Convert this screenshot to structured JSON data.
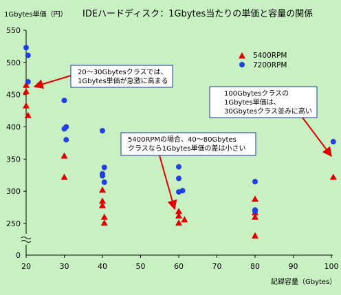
{
  "chart_data": {
    "type": "scatter",
    "title": "IDEハードディスク：1Gbytes当たりの単価と容量の関係",
    "ylabel": "1Gbytes単価（円）",
    "xlabel": "記録容量（Gbytes）",
    "xlim": [
      20,
      100
    ],
    "ylim": [
      200,
      550
    ],
    "xticks": [
      20,
      30,
      40,
      50,
      60,
      70,
      80,
      90,
      100
    ],
    "xtick_labels": [
      "20",
      "30",
      "40",
      "50",
      "60",
      "70",
      "80",
      "90",
      "100"
    ],
    "yticks": [
      250,
      300,
      350,
      400,
      450,
      500,
      550
    ],
    "ytick_labels": [
      "250",
      "300",
      "350",
      "400",
      "450",
      "500",
      "550"
    ],
    "ybreak_label": "0",
    "legend_position": "top-right",
    "grid": "none",
    "series": [
      {
        "name": "5400RPM",
        "marker": "triangle",
        "color": "#e00000",
        "points": [
          {
            "x": 20,
            "y": 465
          },
          {
            "x": 20,
            "y": 455
          },
          {
            "x": 20,
            "y": 433
          },
          {
            "x": 20.5,
            "y": 418
          },
          {
            "x": 30,
            "y": 355
          },
          {
            "x": 30,
            "y": 322
          },
          {
            "x": 40,
            "y": 302
          },
          {
            "x": 40,
            "y": 285
          },
          {
            "x": 40,
            "y": 278
          },
          {
            "x": 40.5,
            "y": 260
          },
          {
            "x": 40.5,
            "y": 251
          },
          {
            "x": 60,
            "y": 269
          },
          {
            "x": 60,
            "y": 262
          },
          {
            "x": 60,
            "y": 251
          },
          {
            "x": 61.5,
            "y": 256
          },
          {
            "x": 80,
            "y": 288
          },
          {
            "x": 80,
            "y": 267
          },
          {
            "x": 80,
            "y": 260
          },
          {
            "x": 80,
            "y": 231
          },
          {
            "x": 100.5,
            "y": 322
          }
        ]
      },
      {
        "name": "7200RPM",
        "marker": "circle",
        "color": "#2040e0",
        "points": [
          {
            "x": 20,
            "y": 523
          },
          {
            "x": 20.5,
            "y": 511
          },
          {
            "x": 20.5,
            "y": 470
          },
          {
            "x": 30,
            "y": 441
          },
          {
            "x": 30,
            "y": 397
          },
          {
            "x": 30.5,
            "y": 400
          },
          {
            "x": 30.5,
            "y": 380
          },
          {
            "x": 40,
            "y": 394
          },
          {
            "x": 40.5,
            "y": 337
          },
          {
            "x": 40,
            "y": 327
          },
          {
            "x": 40,
            "y": 324
          },
          {
            "x": 40.5,
            "y": 314
          },
          {
            "x": 60,
            "y": 338
          },
          {
            "x": 60,
            "y": 320
          },
          {
            "x": 60,
            "y": 299
          },
          {
            "x": 61,
            "y": 301
          },
          {
            "x": 80,
            "y": 315
          },
          {
            "x": 80,
            "y": 271
          },
          {
            "x": 80,
            "y": 269
          },
          {
            "x": 100.5,
            "y": 377
          }
        ]
      }
    ],
    "annotations": [
      {
        "lines": [
          "20〜30Gbytesクラスでは、",
          "1Gbytes単価が急激に高まる"
        ],
        "arrow_to": {
          "x": 21,
          "y": 460
        }
      },
      {
        "lines": [
          "100Gbytesクラスの",
          "1Gbytes単価は、",
          "30Gbytesクラス並みに高い"
        ],
        "arrow_to": {
          "x": 99.5,
          "y": 355
        }
      },
      {
        "lines": [
          "5400RPMの場合、40〜80Gbytes",
          "クラスなら1Gbytes単価の差は小さい"
        ],
        "arrow_to": {
          "x": 59,
          "y": 269
        }
      }
    ],
    "colors": {
      "background": "#c9f0c2",
      "annotation_border": "#1a3a9a",
      "arrow": "#e00000"
    }
  }
}
